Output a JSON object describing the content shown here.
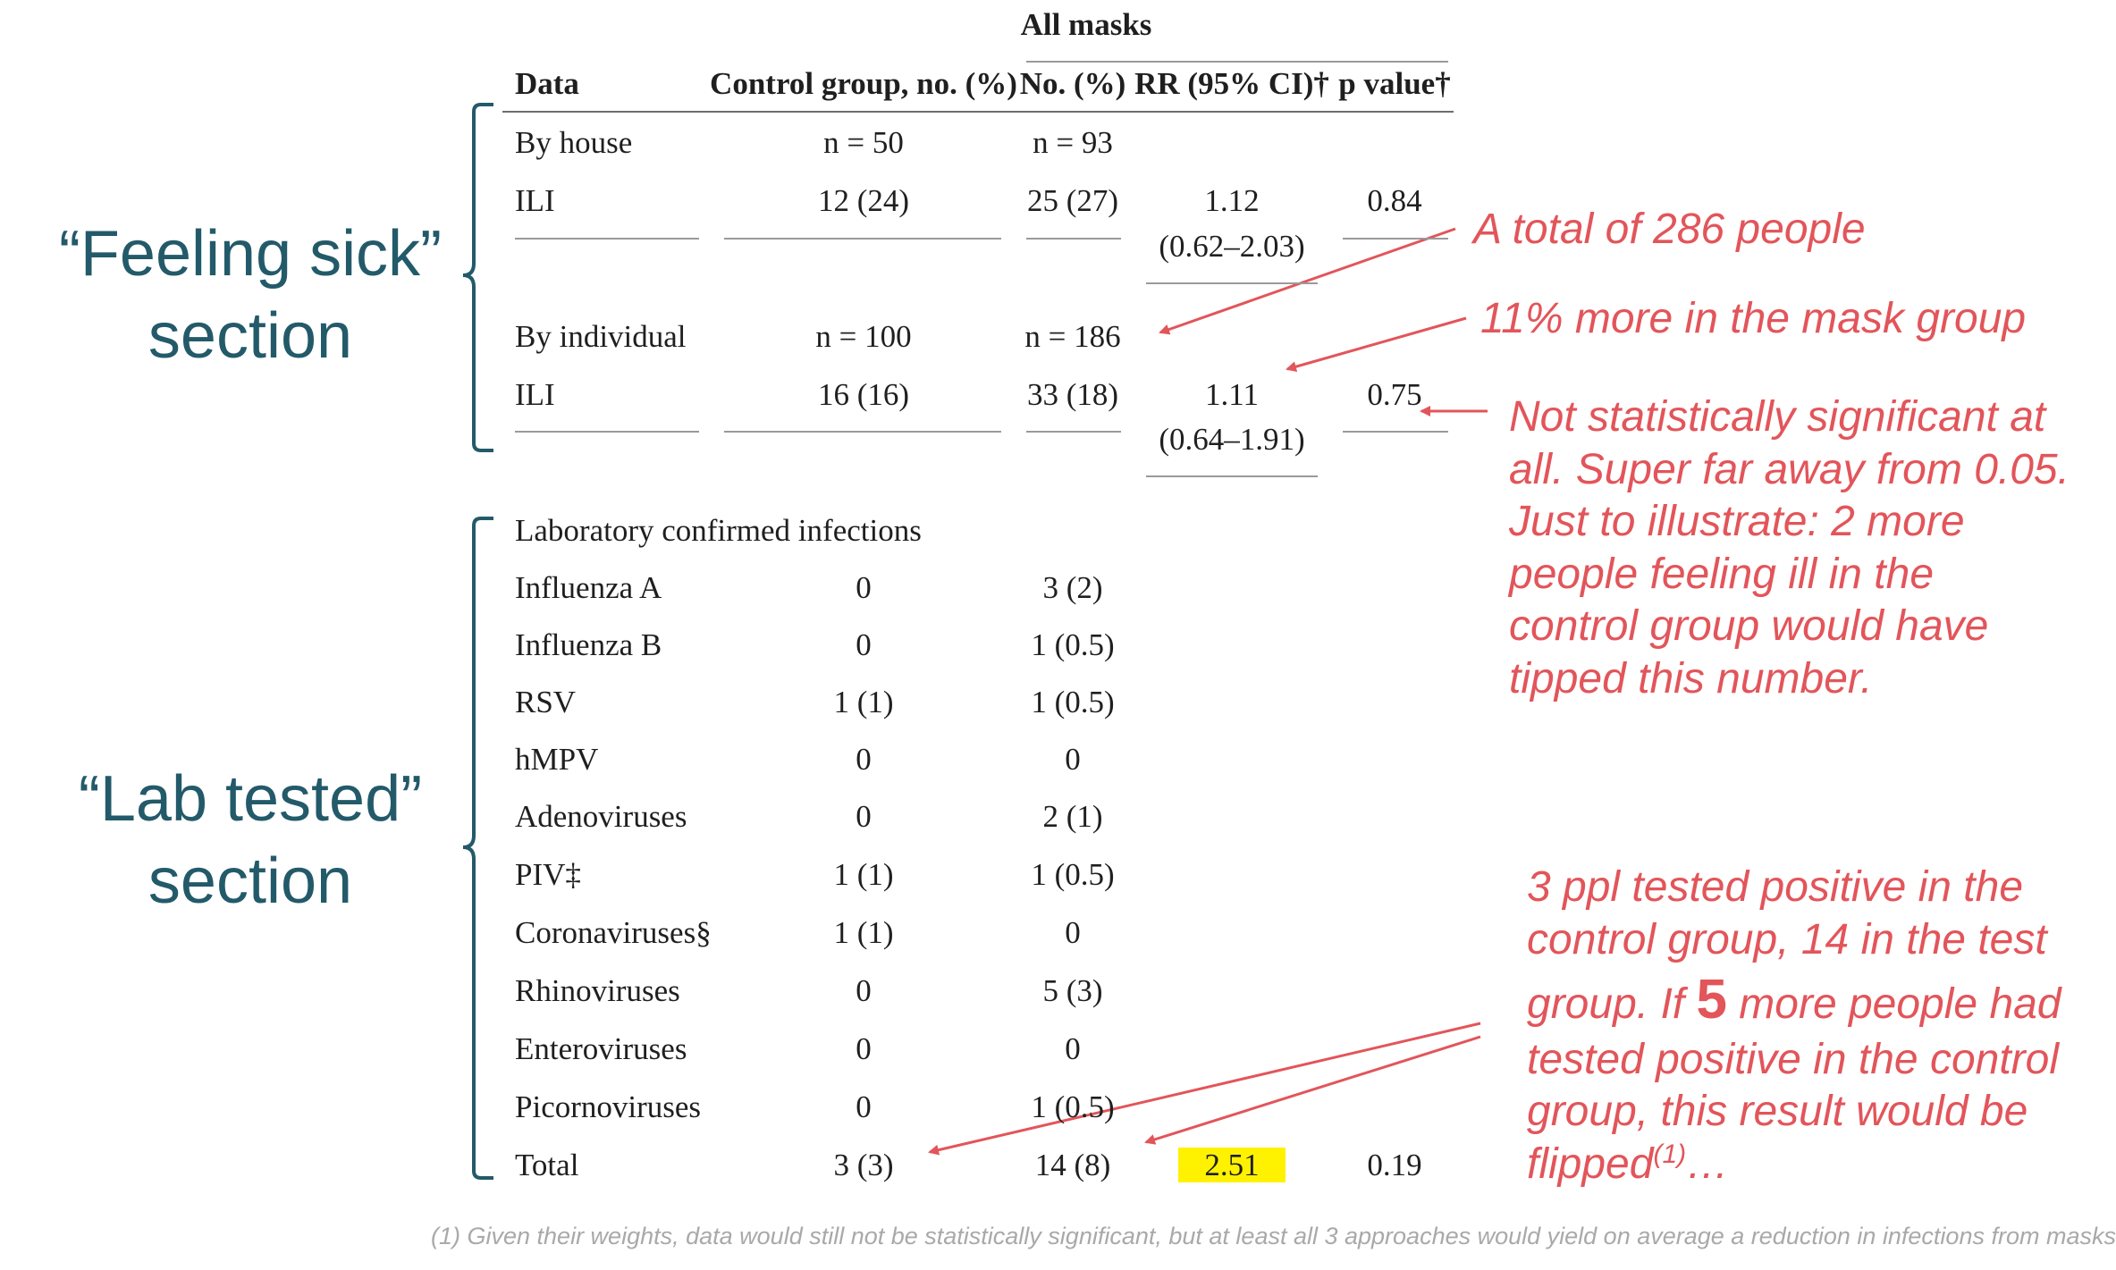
{
  "table": {
    "group_header": "All masks",
    "columns": [
      "Data",
      "Control group, no. (%)",
      "No. (%)",
      "RR (95% CI)†",
      "p value†"
    ],
    "by_house": {
      "label": "By house",
      "control": "n = 50",
      "masks": "n = 93"
    },
    "ili_house": {
      "label": "ILI",
      "control": "12 (24)",
      "masks": "25 (27)",
      "rr": "1.12",
      "ci": "(0.62–2.03)",
      "p": "0.84"
    },
    "by_individual": {
      "label": "By individual",
      "control": "n = 100",
      "masks": "n = 186"
    },
    "ili_individual": {
      "label": "ILI",
      "control": "16 (16)",
      "masks": "33 (18)",
      "rr": "1.11",
      "ci": "(0.64–1.91)",
      "p": "0.75"
    },
    "lab_header": "Laboratory confirmed infections",
    "lab_rows": [
      {
        "label": "Influenza A",
        "control": "0",
        "masks": "3 (2)"
      },
      {
        "label": "Influenza B",
        "control": "0",
        "masks": "1 (0.5)"
      },
      {
        "label": "RSV",
        "control": "1 (1)",
        "masks": "1 (0.5)"
      },
      {
        "label": "hMPV",
        "control": "0",
        "masks": "0"
      },
      {
        "label": "Adenoviruses",
        "control": "0",
        "masks": "2 (1)"
      },
      {
        "label": "PIV‡",
        "control": "1 (1)",
        "masks": "1 (0.5)"
      },
      {
        "label": "Coronaviruses§",
        "control": "1 (1)",
        "masks": "0"
      },
      {
        "label": "Rhinoviruses",
        "control": "0",
        "masks": "5 (3)"
      },
      {
        "label": "Enteroviruses",
        "control": "0",
        "masks": "0"
      },
      {
        "label": "Picornoviruses",
        "control": "0",
        "masks": "1 (0.5)"
      }
    ],
    "total": {
      "label": "Total",
      "control": "3 (3)",
      "masks": "14 (8)",
      "rr": "2.51",
      "p": "0.19"
    }
  },
  "sections": {
    "feeling_sick": {
      "line1": "“Feeling sick”",
      "line2": "section"
    },
    "lab_tested": {
      "line1": "“Lab tested”",
      "line2": "section"
    }
  },
  "annotations": {
    "total_people": "A total of 286 people",
    "more_in_mask": "11% more in the mask group",
    "not_significant": [
      "Not statistically significant at",
      "all. Super far away from 0.05.",
      "Just to illustrate: 2 more",
      "people feeling ill in the",
      "control group would have",
      "tipped this number."
    ],
    "lab_note_lines": [
      "3 ppl tested positive in the",
      "control group, 14 in the test"
    ],
    "lab_note_if": "group. If ",
    "lab_note_five": "5",
    "lab_note_rest": " more people had",
    "lab_note_lines2": [
      "tested positive in the control",
      "group, this result would be"
    ],
    "lab_note_flipped": "flipped",
    "lab_note_sup": "(1)",
    "lab_note_ellipsis": "…"
  },
  "footnote": "(1) Given their weights, data would still not be statistically significant, but at least all 3 approaches would yield on average a reduction in infections from masks",
  "colors": {
    "annotation": "#e2555a",
    "section": "#235a6a",
    "highlight": "#fff200",
    "footnote": "#a9a9a9"
  }
}
